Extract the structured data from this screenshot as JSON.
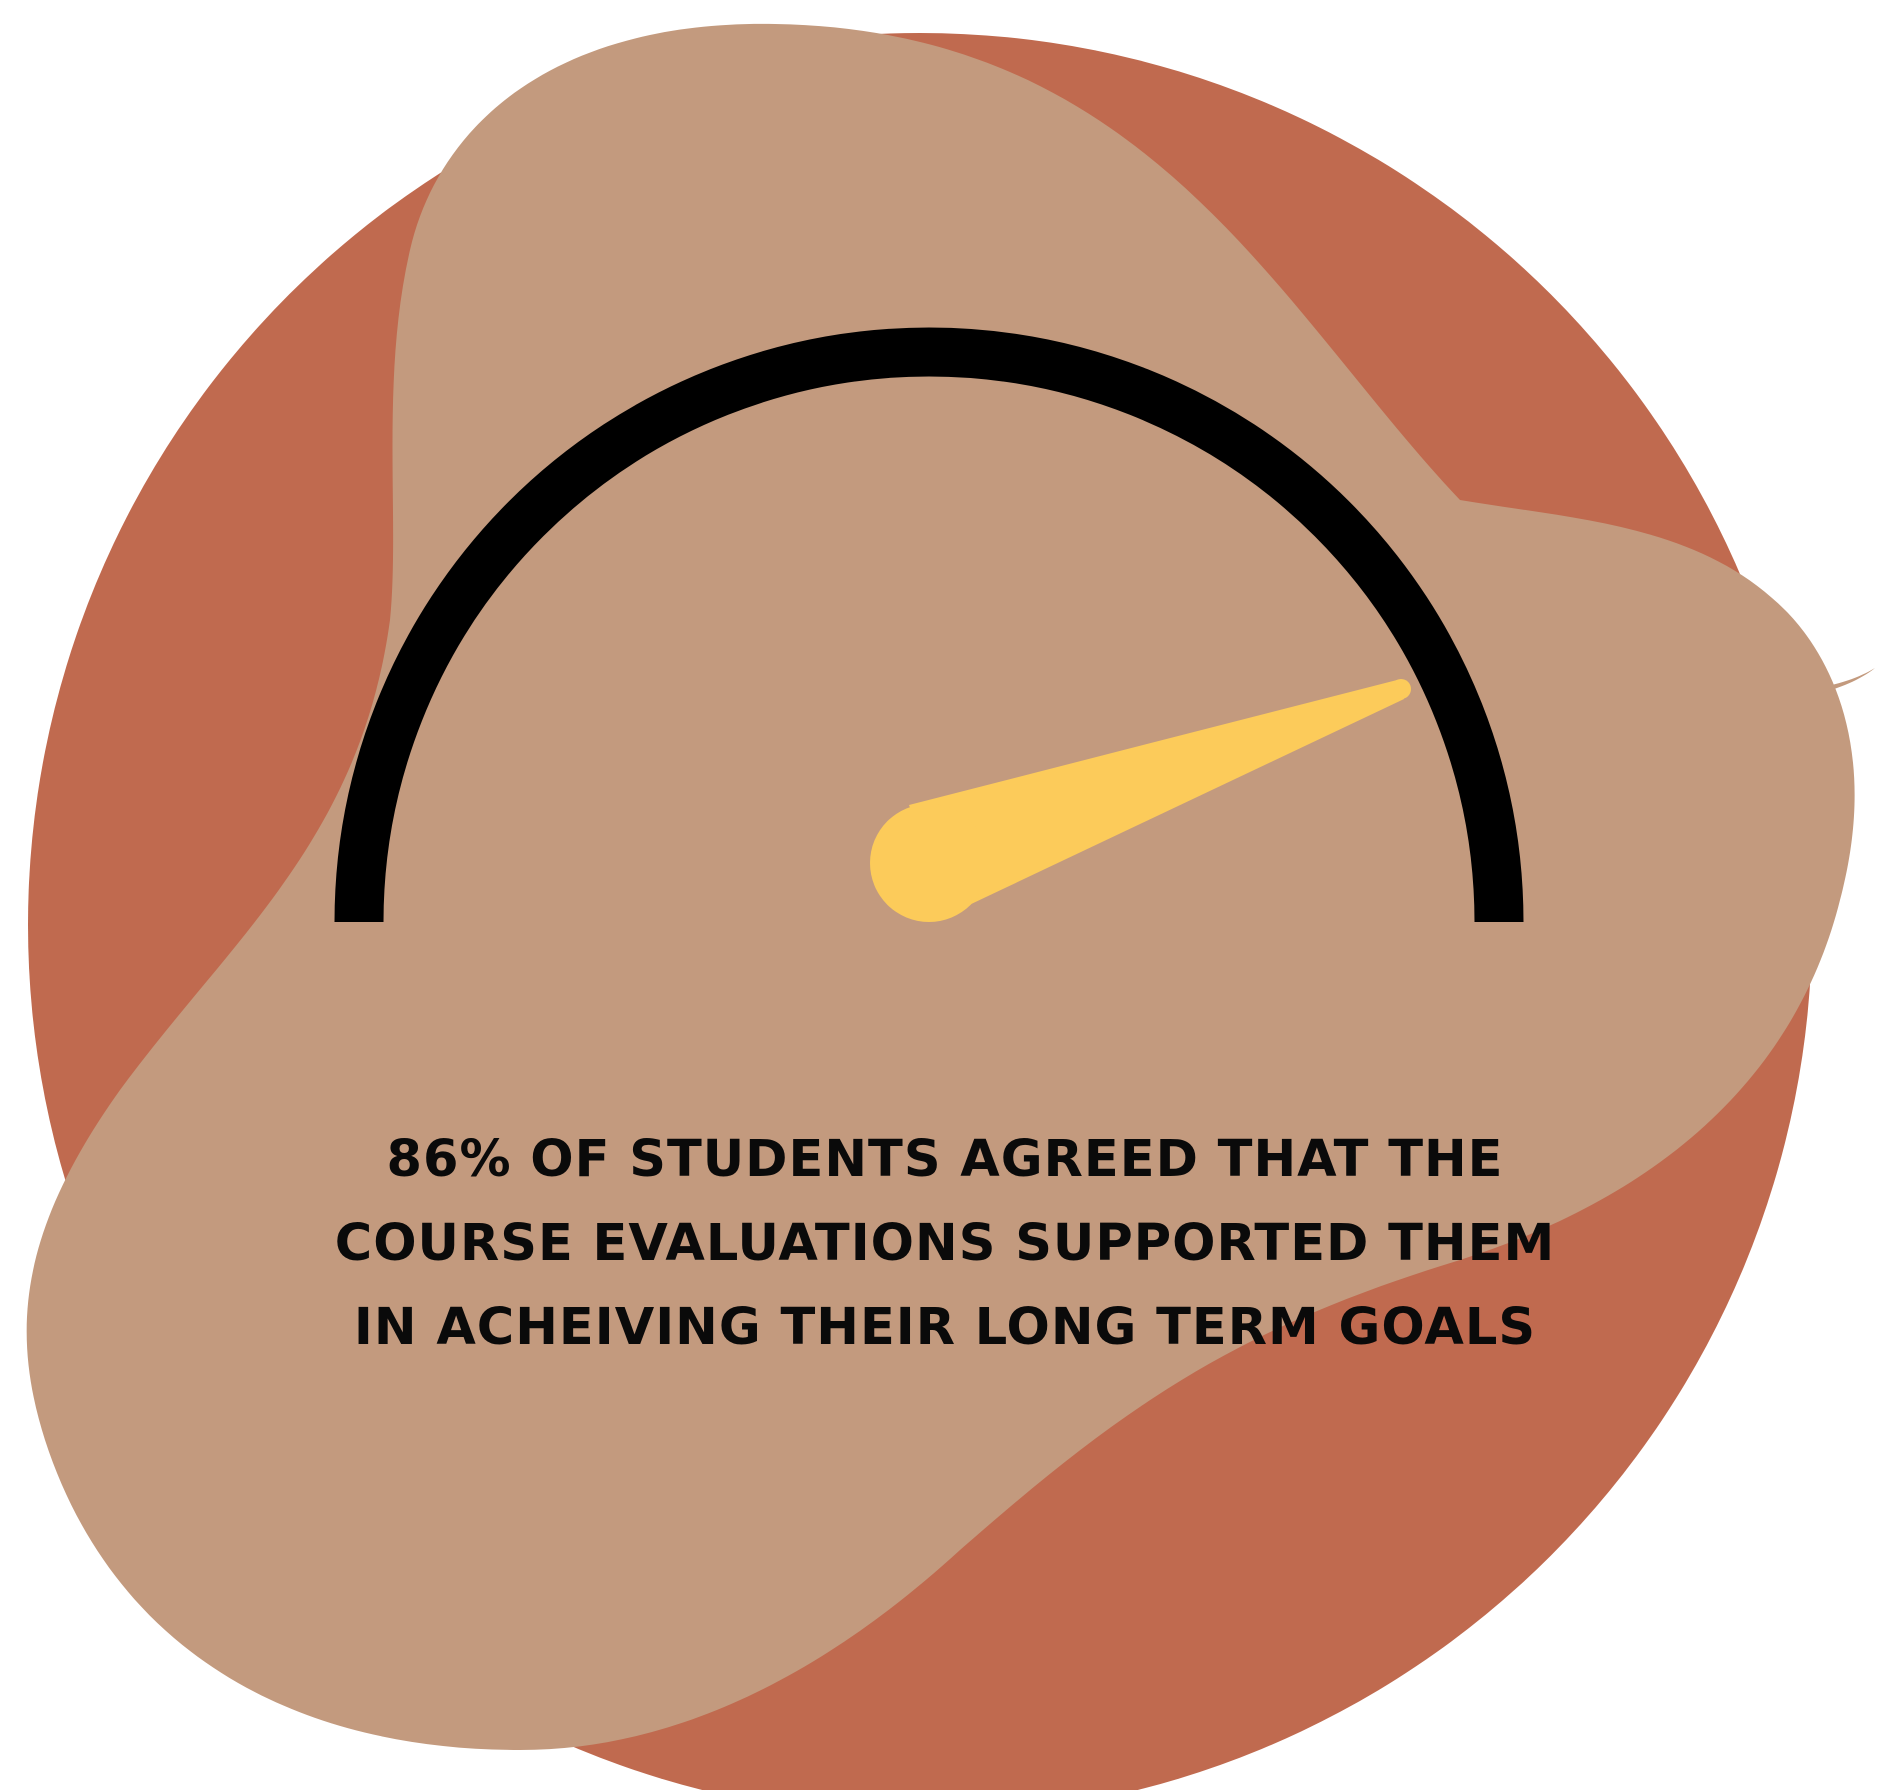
{
  "stat": {
    "line_1": "86% OF STUDENTS AGREED THAT THE",
    "line_2": "COURSE EVALUATIONS SUPPORTED THEM",
    "line_3": "IN ACHEIVING THEIR LONG TERM GOALS"
  },
  "gauge": {
    "value_percent": 86
  },
  "colors": {
    "background_circle": "#C06A4F",
    "blob": "#C39A7E",
    "gauge_arc": "#000000",
    "needle": "#FCCB5A",
    "text": "#0A0A0A"
  }
}
